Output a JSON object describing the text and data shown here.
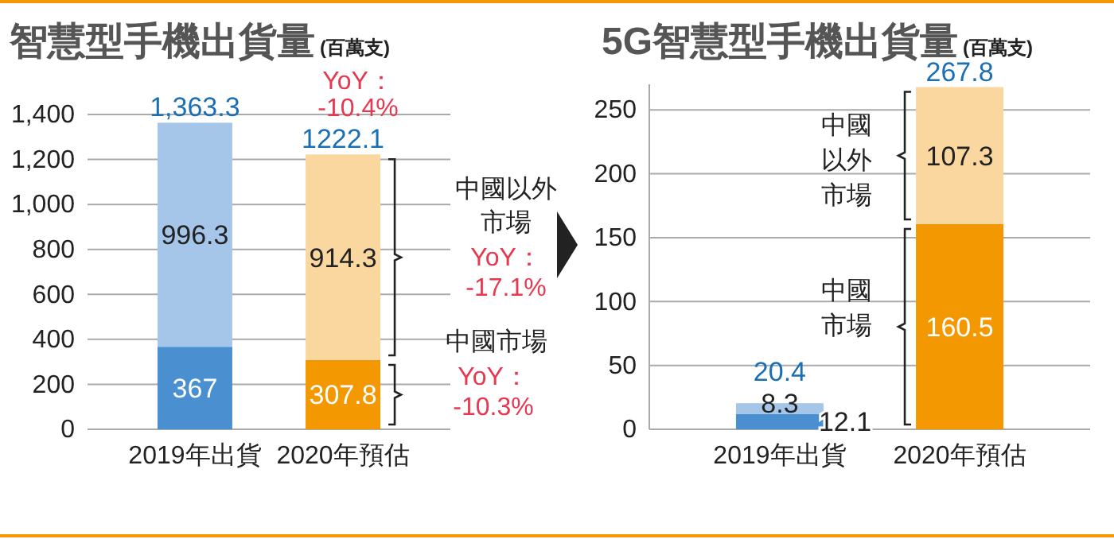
{
  "chart_data": [
    {
      "type": "bar",
      "title": "智慧型手機出貨量",
      "ylabel": "(百萬支)",
      "stacked": true,
      "data_labels": true,
      "grid": "y",
      "categories": [
        "2019年出貨",
        "2020年預估"
      ],
      "series": [
        {
          "values": [
            367,
            307.8
          ],
          "colors": [
            "#4a90d0",
            "#f39800"
          ]
        },
        {
          "values": [
            996.3,
            914.3
          ],
          "colors": [
            "#a5c6e8",
            "#fbd7a0"
          ]
        }
      ],
      "totals": [
        "1,363.3",
        "1222.1"
      ],
      "ylim": [
        0,
        1400
      ],
      "yticks": [
        0,
        200,
        400,
        600,
        800,
        {
          "value": 1000,
          "label": "1,000"
        },
        {
          "value": 1200,
          "label": "1,200"
        },
        {
          "value": 1400,
          "label": "1,400"
        }
      ],
      "annotations": [
        "YoY：-10.4%",
        "中國以外市場",
        "YoY：-17.1%",
        "中國市場",
        "YoY：-10.3%"
      ]
    },
    {
      "type": "bar",
      "title": "5G智慧型手機出貨量",
      "ylabel": "(百萬支)",
      "stacked": true,
      "data_labels": true,
      "grid": "y",
      "categories": [
        "2019年出貨",
        "2020年預估"
      ],
      "series": [
        {
          "values": [
            12.1,
            160.5
          ],
          "colors": [
            "#4a90d0",
            "#f39800"
          ]
        },
        {
          "values": [
            8.3,
            107.3
          ],
          "colors": [
            "#a5c6e8",
            "#fbd7a0"
          ]
        }
      ],
      "totals": [
        "20.4",
        "267.8"
      ],
      "ylim": [
        0,
        270
      ],
      "yticks": [
        0,
        50,
        100,
        150,
        200,
        250
      ],
      "annotations": [
        "中國以外市場",
        "中國市場"
      ]
    }
  ]
}
